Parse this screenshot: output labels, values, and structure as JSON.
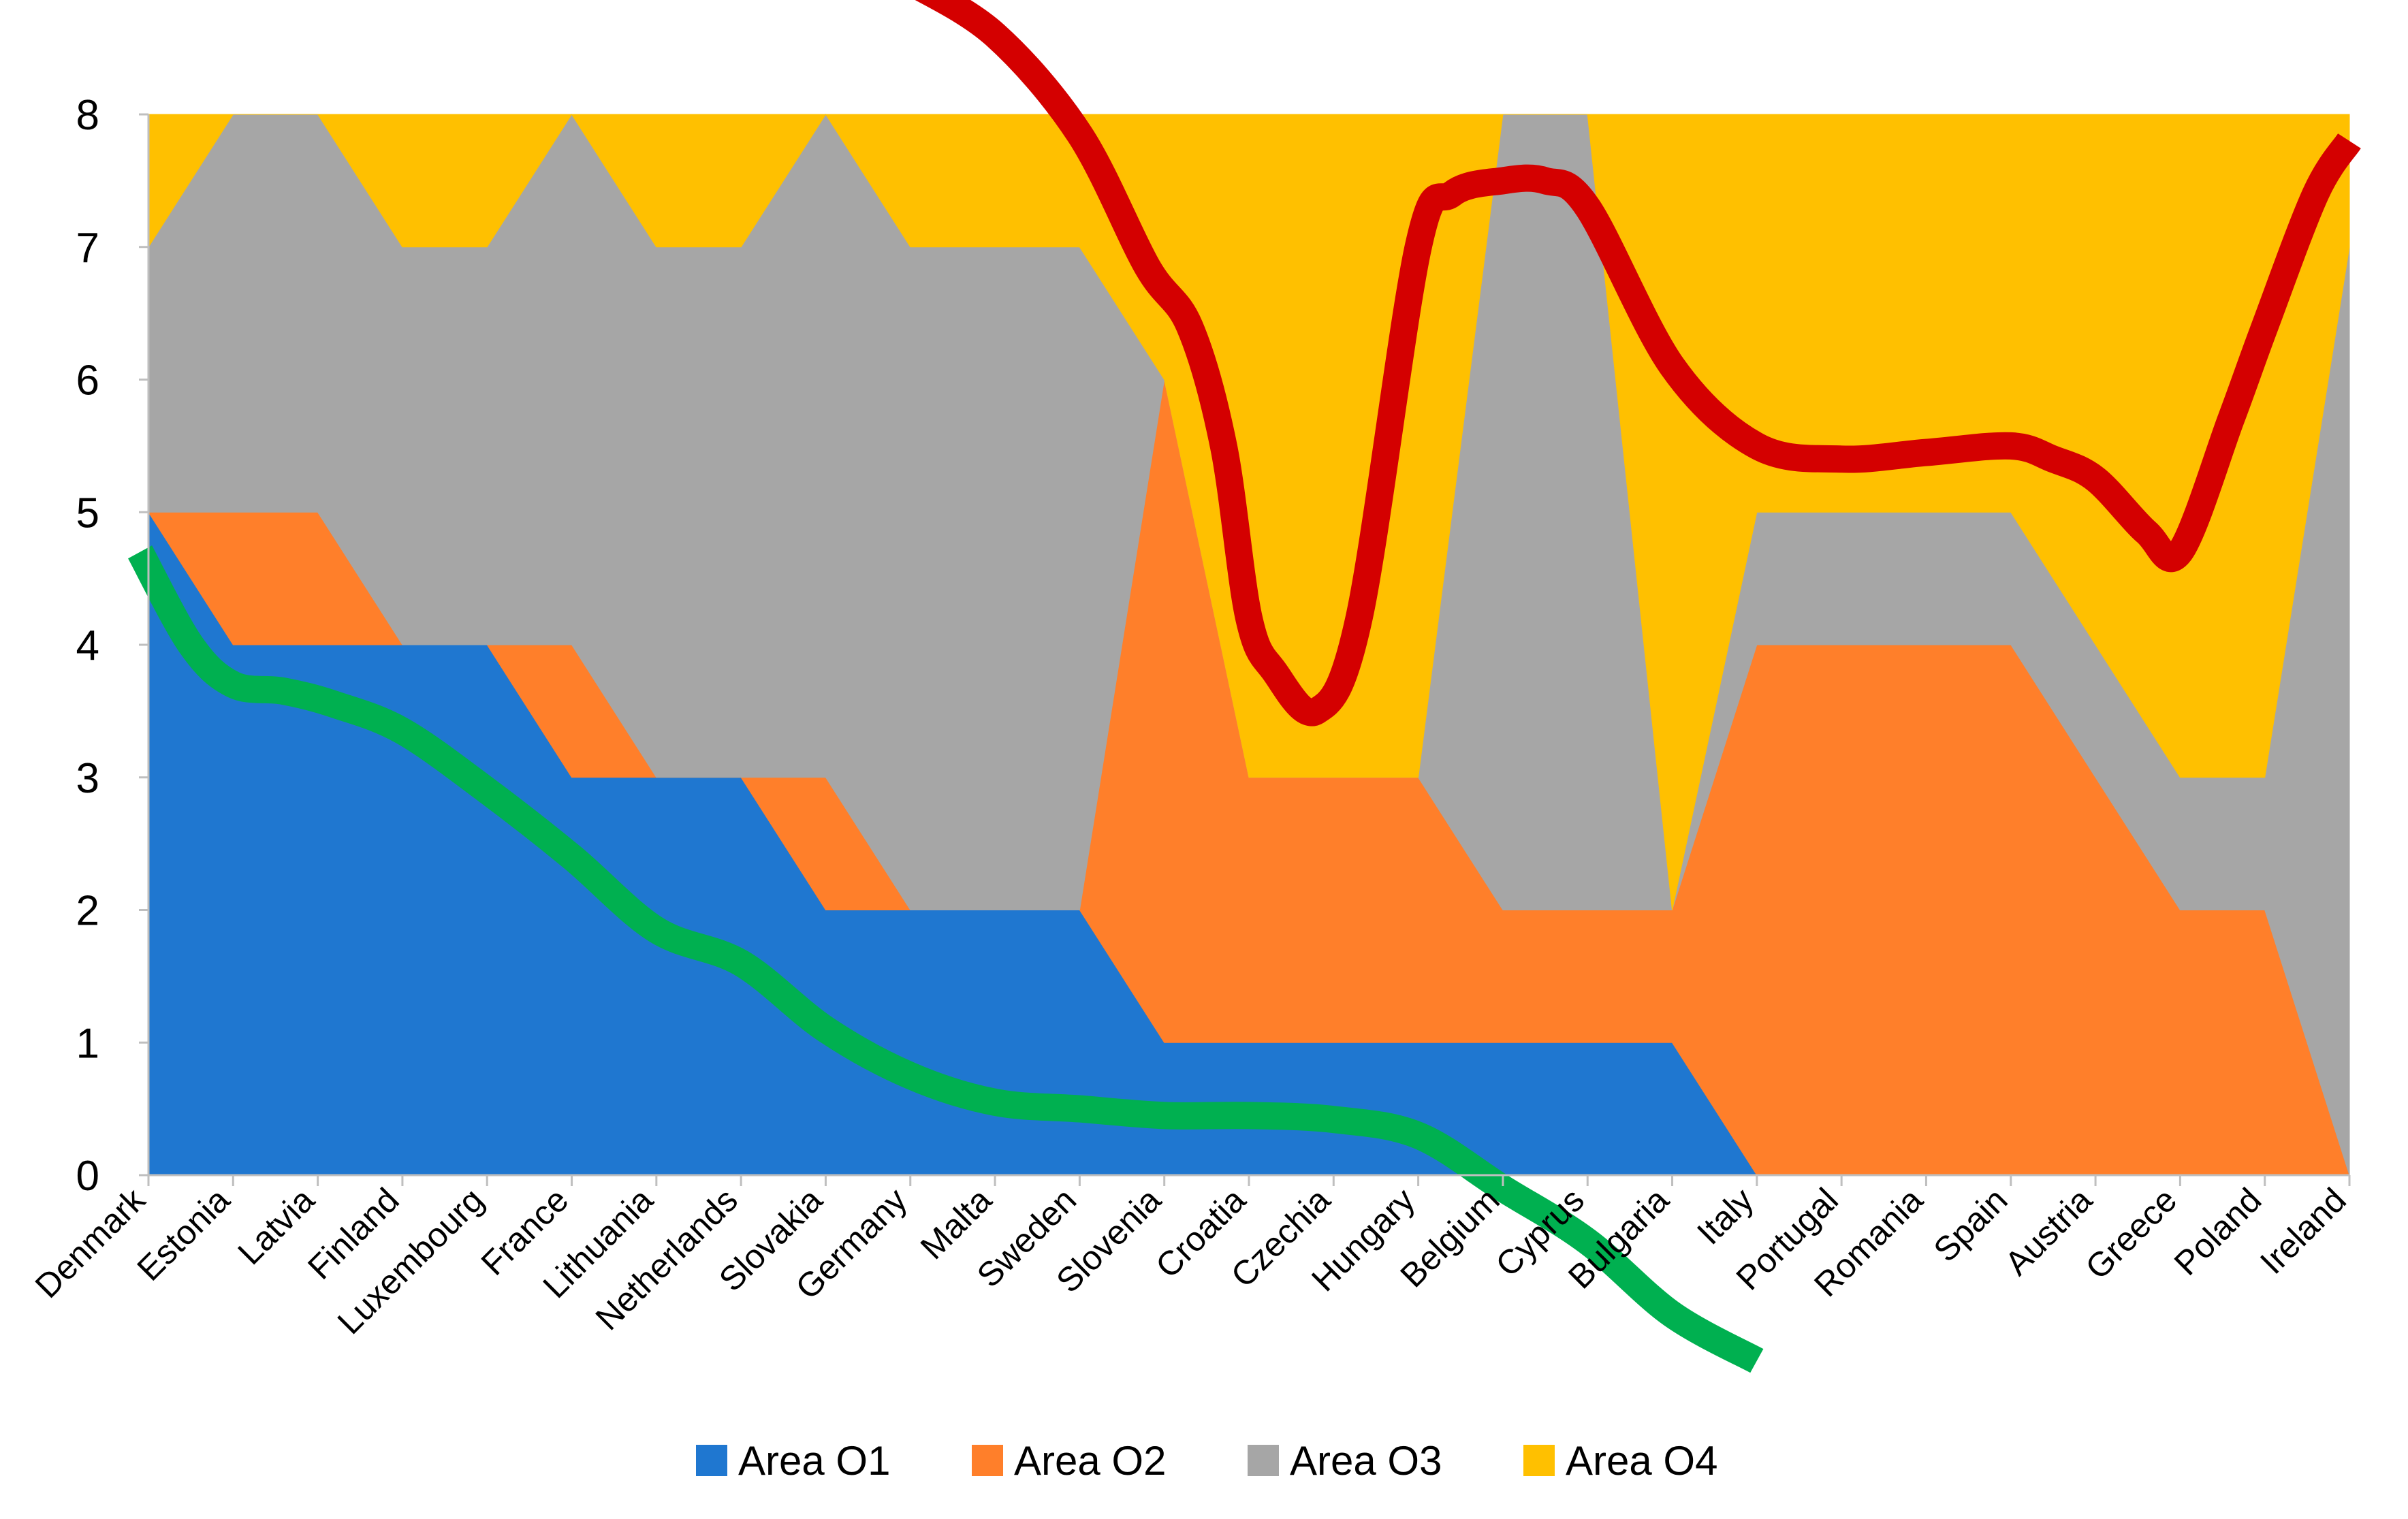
{
  "chart_data": {
    "type": "area",
    "stacked": true,
    "categories": [
      "Denmark",
      "Estonia",
      "Latvia",
      "Finland",
      "Luxembourg",
      "France",
      "Lithuania",
      "Netherlands",
      "Slovakia",
      "Germany",
      "Malta",
      "Sweden",
      "Slovenia",
      "Croatia",
      "Czechia",
      "Hungary",
      "Belgium",
      "Cyprus",
      "Bulgaria",
      "Italy",
      "Portugal",
      "Romania",
      "Spain",
      "Austria",
      "Greece",
      "Poland",
      "Ireland"
    ],
    "series": [
      {
        "name": "Area O1",
        "color": "#1F77D0",
        "values": [
          5,
          4,
          4,
          4,
          4,
          3,
          3,
          3,
          2,
          2,
          2,
          2,
          1,
          1,
          1,
          1,
          1,
          1,
          1,
          0,
          0,
          0,
          0,
          0,
          0,
          0,
          0
        ]
      },
      {
        "name": "Area O2",
        "color": "#FF7F2A",
        "values": [
          0,
          1,
          1,
          0,
          0,
          1,
          0,
          0,
          1,
          0,
          0,
          0,
          5,
          2,
          2,
          2,
          1,
          1,
          1,
          4,
          4,
          4,
          4,
          3,
          2,
          2,
          0
        ]
      },
      {
        "name": "Area O3",
        "color": "#A6A6A6",
        "values": [
          2,
          3,
          3,
          3,
          3,
          4,
          4,
          4,
          5,
          5,
          5,
          5,
          0,
          0,
          0,
          0,
          6,
          6,
          0,
          1,
          1,
          1,
          1,
          1,
          1,
          1,
          7
        ]
      },
      {
        "name": "Area O4",
        "color": "#FFC000",
        "values": [
          1,
          0,
          0,
          1,
          1,
          0,
          1,
          1,
          0,
          1,
          1,
          1,
          2,
          5,
          5,
          5,
          0,
          0,
          6,
          3,
          3,
          3,
          3,
          4,
          5,
          5,
          1
        ]
      }
    ],
    "overlays": [
      {
        "color": "#00B050",
        "x": [
          -0.1,
          0.5,
          1,
          1.6,
          2.2,
          3,
          4,
          5,
          6,
          7,
          8,
          9,
          10,
          11,
          12,
          13,
          14,
          15,
          16,
          17,
          18,
          19
        ],
        "y": [
          4.7,
          4.0,
          3.7,
          3.65,
          3.55,
          3.35,
          2.9,
          2.4,
          1.85,
          1.6,
          1.1,
          0.75,
          0.55,
          0.5,
          0.45,
          0.45,
          0.42,
          0.3,
          -0.1,
          -0.5,
          -1.05,
          -1.4
        ]
      },
      {
        "color": "#D40000",
        "x": [
          9,
          10,
          11,
          11.8,
          12.3,
          12.7,
          13.0,
          13.3,
          13.8,
          14.3,
          15.0,
          15.4,
          16.0,
          16.5,
          17,
          18,
          19,
          20,
          21,
          22,
          22.5,
          23,
          23.6,
          24,
          24.6,
          25,
          25.6,
          26
        ],
        "y": [
          9.0,
          8.6,
          7.85,
          6.85,
          6.4,
          5.5,
          4.2,
          3.8,
          3.5,
          4.2,
          7.0,
          7.4,
          7.5,
          7.5,
          7.3,
          6.1,
          5.5,
          5.4,
          5.45,
          5.5,
          5.4,
          5.25,
          4.85,
          4.7,
          5.7,
          6.4,
          7.4,
          7.8
        ]
      }
    ],
    "ylim": [
      0,
      8
    ],
    "yticks": [
      "0",
      "1",
      "2",
      "3",
      "4",
      "5",
      "6",
      "7",
      "8"
    ],
    "legend_position": "bottom",
    "grid": false
  }
}
